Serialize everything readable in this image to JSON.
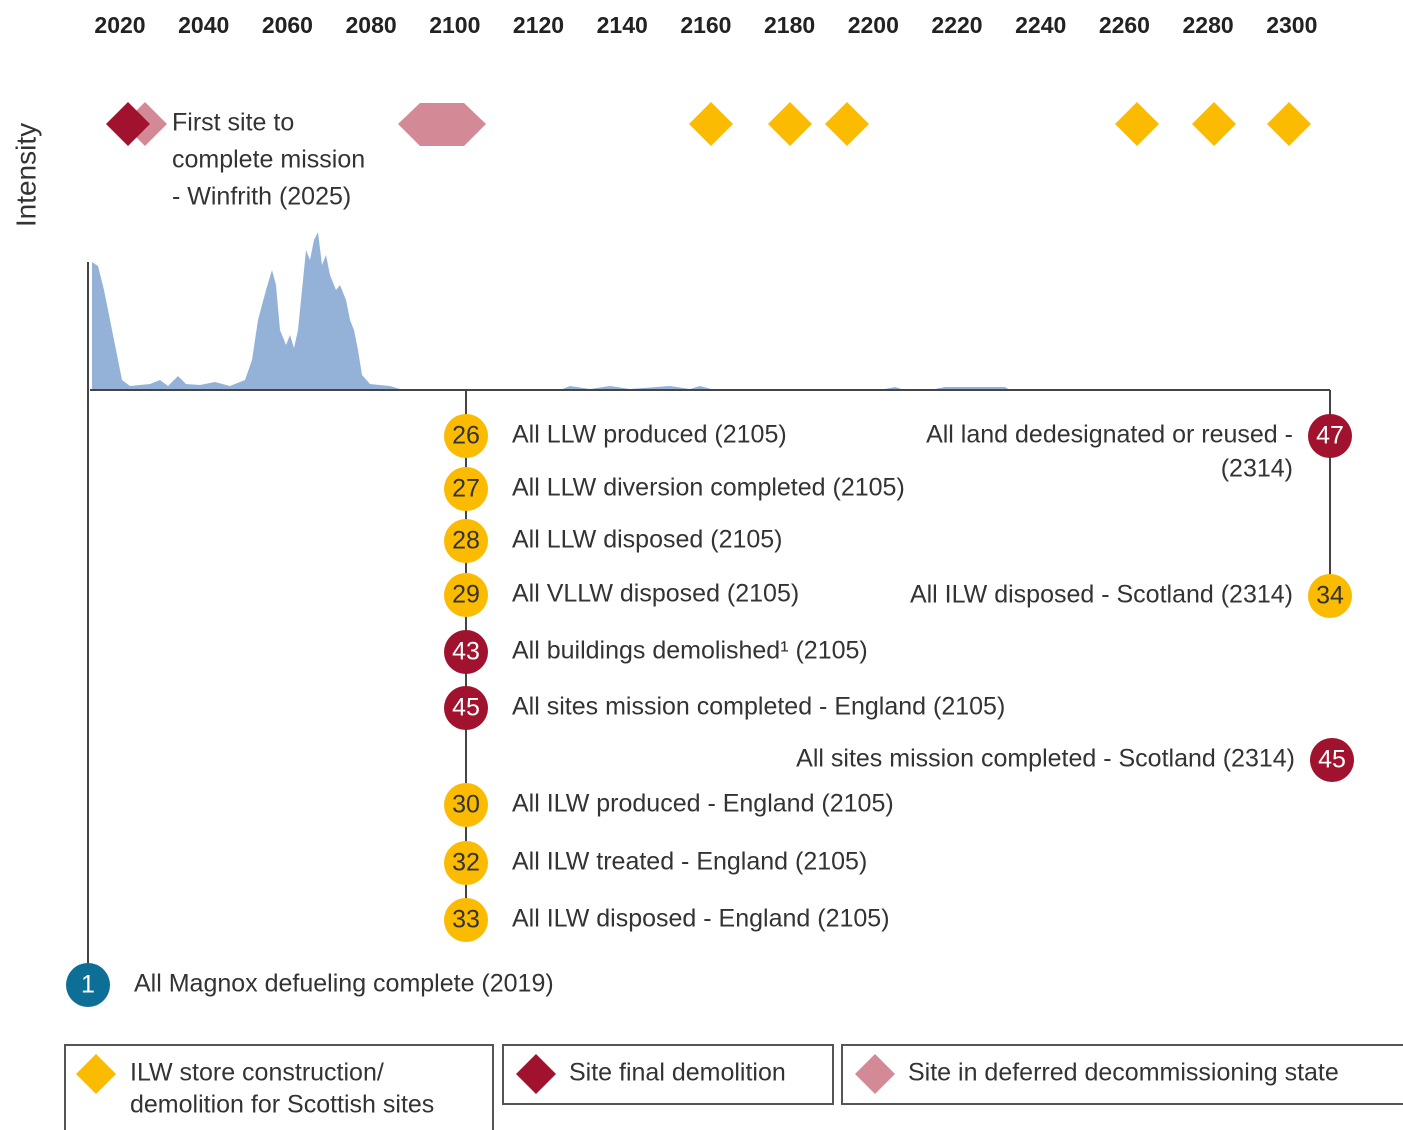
{
  "axis": {
    "years": [
      2020,
      2040,
      2060,
      2080,
      2100,
      2120,
      2140,
      2160,
      2180,
      2200,
      2220,
      2240,
      2260,
      2280,
      2300
    ],
    "y_label": "Intensity"
  },
  "annotation": [
    "First site to",
    "complete mission",
    "- Winfrith (2025)"
  ],
  "milestones": [
    {
      "badge": 26,
      "label": "All LLW produced (2105)"
    },
    {
      "badge": 27,
      "label": "All LLW diversion completed (2105)"
    },
    {
      "badge": 28,
      "label": "All LLW disposed (2105)"
    },
    {
      "badge": 29,
      "label": "All VLLW disposed (2105)"
    },
    {
      "badge": 43,
      "label": "All buildings demolished¹ (2105)"
    },
    {
      "badge": 45,
      "label": "All sites mission completed - England (2105)"
    },
    {
      "badge": 30,
      "label": "All ILW produced - England (2105)"
    },
    {
      "badge": 32,
      "label": "All ILW treated - England (2105)"
    },
    {
      "badge": 33,
      "label": "All ILW disposed - England (2105)"
    },
    {
      "badge": 47,
      "label": [
        "All land dedesignated or reused -",
        "(2314)"
      ]
    },
    {
      "badge": 34,
      "label": "All ILW disposed - Scotland (2314)"
    },
    {
      "badge": 45,
      "label": "All sites mission completed - Scotland (2314)"
    },
    {
      "badge": 1,
      "label": "All Magnox defueling complete (2019)"
    }
  ],
  "legend": [
    {
      "label": [
        "ILW store construction/",
        "demolition for Scottish sites"
      ]
    },
    {
      "label": "Site final demolition"
    },
    {
      "label": "Site in deferred decommissioning state"
    }
  ]
}
